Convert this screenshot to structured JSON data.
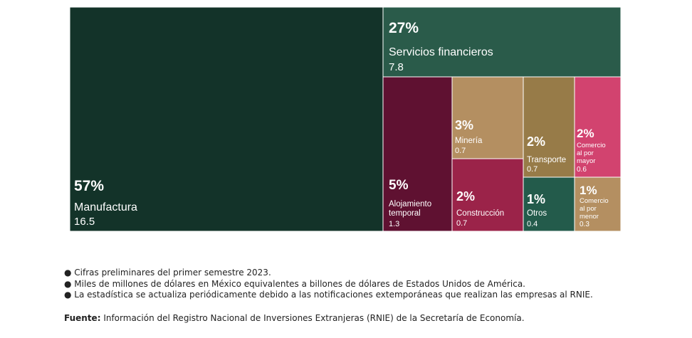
{
  "chart_data": {
    "type": "treemap",
    "unit": "Miles de millones de dólares",
    "items": [
      {
        "label": "Manufactura",
        "pct": "57%",
        "value": 16.5,
        "value_text": "16.5",
        "color": "#133329"
      },
      {
        "label": "Servicios financieros",
        "pct": "27%",
        "value": 7.8,
        "value_text": "7.8",
        "color": "#2a5b4a"
      },
      {
        "label": "Alojamiento temporal",
        "pct": "5%",
        "value": 1.3,
        "value_text": "1.3",
        "color": "#5f1131"
      },
      {
        "label": "Minería",
        "pct": "3%",
        "value": 0.7,
        "value_text": "0.7",
        "color": "#b48f61"
      },
      {
        "label": "Construcción",
        "pct": "2%",
        "value": 0.7,
        "value_text": "0.7",
        "color": "#9b2349"
      },
      {
        "label": "Transporte",
        "pct": "2%",
        "value": 0.7,
        "value_text": "0.7",
        "color": "#977b48"
      },
      {
        "label": "Comercio al por mayor",
        "pct": "2%",
        "value": 0.6,
        "value_text": "0.6",
        "color": "#d2436f"
      },
      {
        "label": "Otros",
        "pct": "1%",
        "value": 0.4,
        "value_text": "0.4",
        "color": "#235b4b"
      },
      {
        "label": "Comercio al por menor",
        "pct": "1%",
        "value": 0.3,
        "value_text": "0.3",
        "color": "#b48f61"
      }
    ]
  },
  "notes": [
    "● Cifras preliminares del primer semestre 2023.",
    "● Miles de millones de dólares en México equivalentes a billones de dólares de Estados Unidos de América.",
    "● La estadística se actualiza periódicamente debido a las notificaciones extemporáneas que realizan las empresas al RNIE."
  ],
  "source": {
    "label": "Fuente:",
    "text": " Información del Registro Nacional de Inversiones Extranjeras (RNIE) de la Secretaría de Economía."
  }
}
